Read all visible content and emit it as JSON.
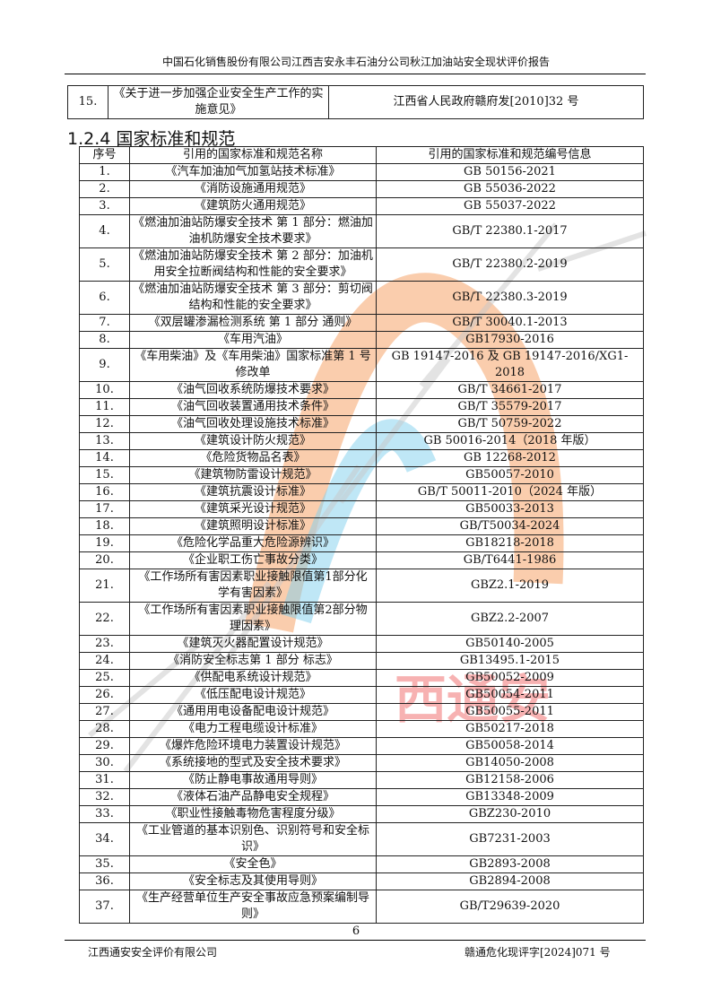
{
  "header": {
    "title": "中国石化销售股份有限公司江西吉安永丰石油分公司秋江加油站安全现状评价报告"
  },
  "top_table": {
    "rows": [
      {
        "no": "15.",
        "name": "《关于进一步加强企业安全生产工作的实施意见》",
        "code": "江西省人民政府赣府发[2010]32 号"
      }
    ]
  },
  "section": {
    "title": "1.2.4 国家标准和规范"
  },
  "standards_table": {
    "headers": [
      "序号",
      "引用的国家标准和规范名称",
      "引用的国家标准和规范编号信息"
    ],
    "rows": [
      {
        "no": "1.",
        "name": "《汽车加油加气加氢站技术标准》",
        "code": "GB 50156-2021"
      },
      {
        "no": "2.",
        "name": "《消防设施通用规范》",
        "code": "GB 55036-2022"
      },
      {
        "no": "3.",
        "name": "《建筑防火通用规范》",
        "code": "GB 55037-2022"
      },
      {
        "no": "4.",
        "name": "《燃油加油站防爆安全技术 第 1 部分：燃油加油机防爆安全技术要求》",
        "code": "GB/T 22380.1-2017",
        "double": true
      },
      {
        "no": "5.",
        "name": "《燃油加油站防爆安全技术 第 2 部分：加油机用安全拉断阀结构和性能的安全要求》",
        "code": "GB/T 22380.2-2019",
        "double": true
      },
      {
        "no": "6.",
        "name": "《燃油加油站防爆安全技术 第 3 部分：剪切阀结构和性能的安全要求》",
        "code": "GB/T 22380.3-2019",
        "double": true
      },
      {
        "no": "7.",
        "name": "《双层罐渗漏检测系统 第 1 部分 通则》",
        "code": "GB/T 30040.1-2013"
      },
      {
        "no": "8.",
        "name": "《车用汽油》",
        "code": "GB17930-2016"
      },
      {
        "no": "9.",
        "name": "《车用柴油》及《车用柴油》国家标准第 1 号修改单",
        "code": "GB 19147-2016 及 GB 19147-2016/XG1-2018",
        "double": true
      },
      {
        "no": "10.",
        "name": "《油气回收系统防爆技术要求》",
        "code": "GB/T 34661-2017"
      },
      {
        "no": "11.",
        "name": "《油气回收装置通用技术条件》",
        "code": "GB/T 35579-2017"
      },
      {
        "no": "12.",
        "name": "《油气回收处理设施技术标准》",
        "code": "GB/T 50759-2022"
      },
      {
        "no": "13.",
        "name": "《建筑设计防火规范》",
        "code": "GB 50016-2014（2018 年版）"
      },
      {
        "no": "14.",
        "name": "《危险货物品名表》",
        "code": "GB 12268-2012"
      },
      {
        "no": "15.",
        "name": "《建筑物防雷设计规范》",
        "code": "GB50057-2010"
      },
      {
        "no": "16.",
        "name": "《建筑抗震设计标准》",
        "code": "GB/T 50011-2010（2024 年版）"
      },
      {
        "no": "17.",
        "name": "《建筑采光设计规范》",
        "code": "GB50033-2013"
      },
      {
        "no": "18.",
        "name": "《建筑照明设计标准》",
        "code": "GB/T50034-2024"
      },
      {
        "no": "19.",
        "name": "《危险化学品重大危险源辨识》",
        "code": "GB18218-2018"
      },
      {
        "no": "20.",
        "name": "《企业职工伤亡事故分类》",
        "code": "GB/T6441-1986"
      },
      {
        "no": "21.",
        "name": "《工作场所有害因素职业接触限值第1部分化学有害因素》",
        "code": "GBZ2.1-2019",
        "double": true
      },
      {
        "no": "22.",
        "name": "《工作场所有害因素职业接触限值第2部分物理因素》",
        "code": "GBZ2.2-2007",
        "double": true
      },
      {
        "no": "23.",
        "name": "《建筑灭火器配置设计规范》",
        "code": "GB50140-2005"
      },
      {
        "no": "24.",
        "name": "《消防安全标志第 1 部分 标志》",
        "code": "GB13495.1-2015"
      },
      {
        "no": "25.",
        "name": "《供配电系统设计规范》",
        "code": "GB50052-2009"
      },
      {
        "no": "26.",
        "name": "《低压配电设计规范》",
        "code": "GB50054-2011"
      },
      {
        "no": "27.",
        "name": "《通用用电设备配电设计规范》",
        "code": "GB50055-2011"
      },
      {
        "no": "28.",
        "name": "《电力工程电缆设计标准》",
        "code": "GB50217-2018"
      },
      {
        "no": "29.",
        "name": "《爆炸危险环境电力装置设计规范》",
        "code": "GB50058-2014"
      },
      {
        "no": "30.",
        "name": "《系统接地的型式及安全技术要求》",
        "code": "GB14050-2008"
      },
      {
        "no": "31.",
        "name": "《防止静电事故通用导则》",
        "code": "GB12158-2006"
      },
      {
        "no": "32.",
        "name": "《液体石油产品静电安全规程》",
        "code": "GB13348-2009"
      },
      {
        "no": "33.",
        "name": "《职业性接触毒物危害程度分级》",
        "code": "GBZ230-2010"
      },
      {
        "no": "34.",
        "name": "《工业管道的基本识别色、识别符号和安全标识》",
        "code": "GB7231-2003",
        "double": true
      },
      {
        "no": "35.",
        "name": "《安全色》",
        "code": "GB2893-2008"
      },
      {
        "no": "36.",
        "name": "《安全标志及其使用导则》",
        "code": "GB2894-2008"
      },
      {
        "no": "37.",
        "name": "《生产经营单位生产安全事故应急预案编制导则》",
        "code": "GB/T29639-2020",
        "double": true
      }
    ]
  },
  "page_number": "6",
  "footer": {
    "company": "江西通安安全评价有限公司",
    "report_no": "赣通危化现评字[2024]071 号"
  },
  "watermark": {
    "text": "江西通安",
    "colors": {
      "orange": "#f5a46a",
      "blue": "#7fd0ee",
      "red": "#ee5555",
      "gray": "#d0d0d0"
    }
  }
}
